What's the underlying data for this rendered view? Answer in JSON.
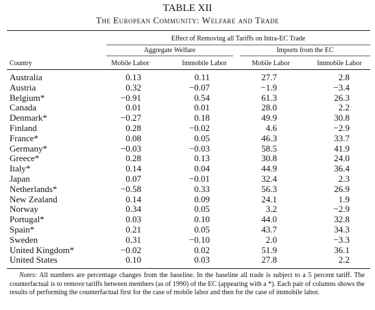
{
  "header": {
    "title": "TABLE XII",
    "subtitle": "The European Community: Welfare and Trade"
  },
  "table": {
    "spanner": "Effect of Removing all Tariffs on Intra-EC Trade",
    "groups": [
      "Aggregate Welfare",
      "Imports from the EC"
    ],
    "columns": [
      "Country",
      "Mobile Labor",
      "Immobile Labor",
      "Mobile Labor",
      "Immobile Labor"
    ],
    "rows": [
      [
        "Australia",
        "0.13",
        "0.11",
        "27.7",
        "2.8"
      ],
      [
        "Austria",
        "0.32",
        "−0.07",
        "−1.9",
        "−3.4"
      ],
      [
        "Belgium*",
        "−0.91",
        "0.54",
        "61.3",
        "26.3"
      ],
      [
        "Canada",
        "0.01",
        "0.01",
        "28.0",
        "2.2"
      ],
      [
        "Denmark*",
        "−0.27",
        "0.18",
        "49.9",
        "30.8"
      ],
      [
        "Finland",
        "0.28",
        "−0.02",
        "4.6",
        "−2.9"
      ],
      [
        "France*",
        "0.08",
        "0.05",
        "46.3",
        "33.7"
      ],
      [
        "Germany*",
        "−0.03",
        "−0.03",
        "58.5",
        "41.9"
      ],
      [
        "Greece*",
        "0.28",
        "0.13",
        "30.8",
        "24.0"
      ],
      [
        "Italy*",
        "0.14",
        "0.04",
        "44.9",
        "36.4"
      ],
      [
        "Japan",
        "0.07",
        "−0.01",
        "32.4",
        "2.3"
      ],
      [
        "Netherlands*",
        "−0.58",
        "0.33",
        "56.3",
        "26.9"
      ],
      [
        "New Zealand",
        "0.14",
        "0.09",
        "24.1",
        "1.9"
      ],
      [
        "Norway",
        "0.34",
        "0.05",
        "3.2",
        "−2.9"
      ],
      [
        "Portugal*",
        "0.03",
        "0.10",
        "44.0",
        "32.8"
      ],
      [
        "Spain*",
        "0.21",
        "0.05",
        "43.7",
        "34.3"
      ],
      [
        "Sweden",
        "0.31",
        "−0.10",
        "2.0",
        "−3.3"
      ],
      [
        "United Kingdom*",
        "−0.02",
        "0.02",
        "51.9",
        "36.1"
      ],
      [
        "United States",
        "0.10",
        "0.03",
        "27.8",
        "2.2"
      ]
    ]
  },
  "notes": {
    "label": "Notes:",
    "text": "All numbers are percentage changes from the baseline. In the baseline all trade is subject to a 5 percent tariff. The counterfactual is to remove tariffs between members (as of 1990) of the EC (appearing with a *). Each pair of columns shows the results of performing the counterfactual first for the case of mobile labor and then for the case of immobile labor."
  }
}
